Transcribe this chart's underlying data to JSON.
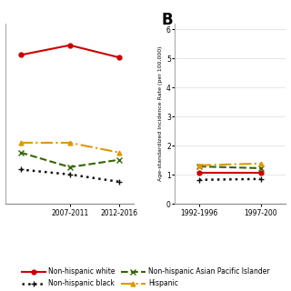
{
  "panel_A": {
    "x_tick_labels": [
      "2007-2011",
      "2012-2016"
    ],
    "x_positions": [
      0,
      1,
      2
    ],
    "x_tick_positions": [
      1,
      2
    ],
    "series": {
      "nhw": [
        5.55,
        5.75,
        5.5
      ],
      "nhb": [
        3.2,
        3.1,
        2.95
      ],
      "nhapi": [
        3.55,
        3.25,
        3.4
      ],
      "hispanic": [
        3.75,
        3.75,
        3.55
      ]
    },
    "ylim": [
      2.5,
      6.2
    ]
  },
  "panel_B": {
    "x_ticks": [
      "1992-1996",
      "1997-200"
    ],
    "x_positions": [
      0,
      1
    ],
    "series": {
      "nhw": [
        1.05,
        1.05
      ],
      "nhb": [
        0.82,
        0.85
      ],
      "nhapi": [
        1.28,
        1.22
      ],
      "hispanic": [
        1.32,
        1.38
      ]
    },
    "ylim": [
      0,
      6.2
    ],
    "yticks": [
      0,
      1,
      2,
      3,
      4,
      5,
      6
    ],
    "ylabel": "Age-standardized Incidence Rate (per 100,000)"
  },
  "colors": {
    "nhw": "#cc0000",
    "nhb": "#111111",
    "nhapi": "#336600",
    "hispanic": "#dd9900"
  },
  "legend": {
    "nhw_label": "Non-hispanic white",
    "nhb_label": "Non-hispanic black",
    "nhapi_label": "Non-hispanic Asian Pacific Islander",
    "hispanic_label": "Hispanic"
  },
  "panel_B_label": "B",
  "background_color": "#ffffff"
}
